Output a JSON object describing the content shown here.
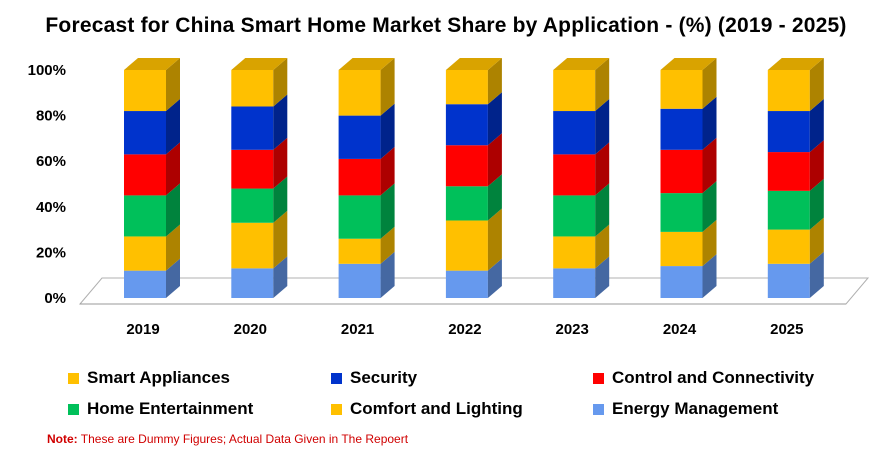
{
  "chart_data": {
    "type": "bar",
    "stacked": true,
    "three_d": true,
    "title": "Forecast for China Smart Home Market Share by Application  - (%)  (2019  - 2025)",
    "categories": [
      "2019",
      "2020",
      "2021",
      "2022",
      "2023",
      "2024",
      "2025"
    ],
    "ylim": [
      0,
      100
    ],
    "y_ticks": [
      "0%",
      "20%",
      "40%",
      "60%",
      "80%",
      "100%"
    ],
    "grid": false,
    "legend_position": "bottom",
    "series": [
      {
        "name": "Energy Management",
        "color": "#6699ee",
        "values": [
          12,
          13,
          15,
          12,
          13,
          14,
          15
        ]
      },
      {
        "name": "Comfort and Lighting",
        "color": "#ffc000",
        "values": [
          15,
          20,
          11,
          22,
          14,
          15,
          15
        ]
      },
      {
        "name": "Home Entertainment",
        "color": "#00c05a",
        "values": [
          18,
          15,
          19,
          15,
          18,
          17,
          17
        ]
      },
      {
        "name": "Control and Connectivity",
        "color": "#ff0000",
        "values": [
          18,
          17,
          16,
          18,
          18,
          19,
          17
        ]
      },
      {
        "name": "Security",
        "color": "#0033cc",
        "values": [
          19,
          19,
          19,
          18,
          19,
          18,
          18
        ]
      },
      {
        "name": "Smart Appliances",
        "color": "#ffc000",
        "values": [
          18,
          16,
          20,
          15,
          18,
          17,
          18
        ]
      }
    ]
  },
  "legend": [
    {
      "label": "Smart Appliances",
      "color": "#ffc000"
    },
    {
      "label": "Security",
      "color": "#0033cc"
    },
    {
      "label": "Control and Connectivity",
      "color": "#ff0000"
    },
    {
      "label": "Home Entertainment",
      "color": "#00c05a"
    },
    {
      "label": "Comfort and Lighting",
      "color": "#ffc000"
    },
    {
      "label": "Energy Management",
      "color": "#6699ee"
    }
  ],
  "note": {
    "prefix": "Note:",
    "text": " These are Dummy Figures; Actual Data Given in The Repoert"
  }
}
